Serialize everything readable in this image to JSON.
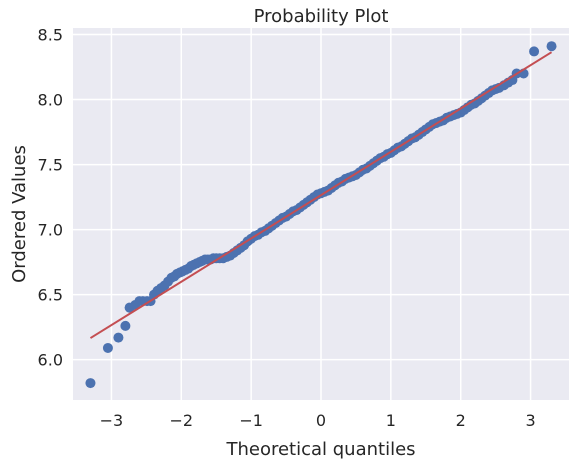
{
  "chart_data": {
    "type": "scatter",
    "title": "Probability Plot",
    "xlabel": "Theoretical quantiles",
    "ylabel": "Ordered Values",
    "xlim": [
      -3.55,
      3.55
    ],
    "ylim": [
      5.69,
      8.55
    ],
    "xticks": [
      -3,
      -2,
      -1,
      0,
      1,
      2,
      3
    ],
    "xtick_labels": [
      "−3",
      "−2",
      "−1",
      "0",
      "1",
      "2",
      "3"
    ],
    "yticks": [
      6.0,
      6.5,
      7.0,
      7.5,
      8.0,
      8.5
    ],
    "ytick_labels": [
      "6.0",
      "6.5",
      "7.0",
      "7.5",
      "8.0",
      "8.5"
    ],
    "grid": true,
    "background_color": "#eaeaf2",
    "grid_color": "#ffffff",
    "point_color": "#4c72b0",
    "line_color": "#c44e52",
    "fit_line": {
      "slope": 0.333,
      "intercept": 7.265,
      "x_range": [
        -3.3,
        3.3
      ]
    },
    "points": [
      [
        -3.3,
        5.82
      ],
      [
        -3.05,
        6.09
      ],
      [
        -2.9,
        6.17
      ],
      [
        -2.8,
        6.26
      ],
      [
        -2.74,
        6.4
      ],
      [
        -2.66,
        6.42
      ],
      [
        -2.6,
        6.45
      ],
      [
        -2.55,
        6.45
      ],
      [
        -2.49,
        6.45
      ],
      [
        -2.44,
        6.45
      ],
      [
        -2.39,
        6.5
      ],
      [
        -2.34,
        6.53
      ],
      [
        -2.29,
        6.55
      ],
      [
        -2.24,
        6.57
      ],
      [
        -2.19,
        6.6
      ],
      [
        -2.14,
        6.63
      ],
      [
        -2.1,
        6.64
      ],
      [
        -2.06,
        6.66
      ],
      [
        -2.02,
        6.67
      ],
      [
        -1.98,
        6.68
      ],
      [
        -1.94,
        6.69
      ],
      [
        -1.9,
        6.7
      ],
      [
        -1.86,
        6.72
      ],
      [
        -1.82,
        6.73
      ],
      [
        -1.78,
        6.74
      ],
      [
        -1.74,
        6.75
      ],
      [
        -1.7,
        6.76
      ],
      [
        -1.66,
        6.77
      ],
      [
        -1.62,
        6.77
      ],
      [
        -1.58,
        6.77
      ],
      [
        -1.54,
        6.78
      ],
      [
        -1.5,
        6.78
      ],
      [
        -1.45,
        6.78
      ],
      [
        -1.4,
        6.78
      ],
      [
        -1.35,
        6.79
      ],
      [
        -1.3,
        6.8
      ],
      [
        -1.25,
        6.82
      ],
      [
        -1.2,
        6.84
      ],
      [
        -1.15,
        6.86
      ],
      [
        -1.1,
        6.88
      ],
      [
        -1.05,
        6.91
      ],
      [
        -1.0,
        6.93
      ],
      [
        -0.95,
        6.95
      ],
      [
        -0.9,
        6.96
      ],
      [
        -0.85,
        6.98
      ],
      [
        -0.8,
        6.99
      ],
      [
        -0.75,
        7.01
      ],
      [
        -0.7,
        7.03
      ],
      [
        -0.65,
        7.05
      ],
      [
        -0.6,
        7.07
      ],
      [
        -0.55,
        7.09
      ],
      [
        -0.5,
        7.1
      ],
      [
        -0.45,
        7.12
      ],
      [
        -0.4,
        7.14
      ],
      [
        -0.35,
        7.15
      ],
      [
        -0.3,
        7.17
      ],
      [
        -0.25,
        7.19
      ],
      [
        -0.2,
        7.21
      ],
      [
        -0.15,
        7.23
      ],
      [
        -0.1,
        7.25
      ],
      [
        -0.05,
        7.27
      ],
      [
        0.0,
        7.28
      ],
      [
        0.05,
        7.29
      ],
      [
        0.1,
        7.3
      ],
      [
        0.15,
        7.32
      ],
      [
        0.2,
        7.34
      ],
      [
        0.25,
        7.36
      ],
      [
        0.3,
        7.37
      ],
      [
        0.35,
        7.39
      ],
      [
        0.4,
        7.4
      ],
      [
        0.45,
        7.41
      ],
      [
        0.5,
        7.42
      ],
      [
        0.55,
        7.44
      ],
      [
        0.6,
        7.46
      ],
      [
        0.65,
        7.47
      ],
      [
        0.7,
        7.49
      ],
      [
        0.75,
        7.51
      ],
      [
        0.8,
        7.53
      ],
      [
        0.85,
        7.55
      ],
      [
        0.9,
        7.56
      ],
      [
        0.95,
        7.58
      ],
      [
        1.0,
        7.59
      ],
      [
        1.05,
        7.61
      ],
      [
        1.1,
        7.63
      ],
      [
        1.15,
        7.64
      ],
      [
        1.2,
        7.66
      ],
      [
        1.25,
        7.68
      ],
      [
        1.3,
        7.7
      ],
      [
        1.35,
        7.71
      ],
      [
        1.4,
        7.73
      ],
      [
        1.45,
        7.75
      ],
      [
        1.5,
        7.77
      ],
      [
        1.55,
        7.79
      ],
      [
        1.6,
        7.81
      ],
      [
        1.65,
        7.82
      ],
      [
        1.7,
        7.83
      ],
      [
        1.75,
        7.84
      ],
      [
        1.8,
        7.86
      ],
      [
        1.85,
        7.87
      ],
      [
        1.9,
        7.88
      ],
      [
        1.95,
        7.89
      ],
      [
        2.0,
        7.9
      ],
      [
        2.05,
        7.92
      ],
      [
        2.1,
        7.94
      ],
      [
        2.15,
        7.96
      ],
      [
        2.2,
        7.97
      ],
      [
        2.25,
        7.99
      ],
      [
        2.3,
        8.01
      ],
      [
        2.35,
        8.03
      ],
      [
        2.4,
        8.05
      ],
      [
        2.45,
        8.07
      ],
      [
        2.5,
        8.08
      ],
      [
        2.55,
        8.09
      ],
      [
        2.62,
        8.11
      ],
      [
        2.68,
        8.13
      ],
      [
        2.74,
        8.15
      ],
      [
        2.8,
        8.2
      ],
      [
        2.9,
        8.2
      ],
      [
        3.05,
        8.37
      ],
      [
        3.3,
        8.41
      ]
    ]
  }
}
